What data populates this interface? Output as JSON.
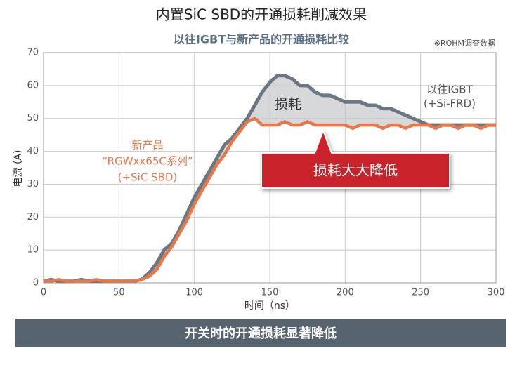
{
  "chart_data": {
    "type": "line",
    "title": "内置SiC SBD的开通损耗削减效果",
    "subtitle": "以往IGBT与新产品的开通损耗比较",
    "note": "※ROHM调查数据",
    "xlabel": "时间（ns）",
    "ylabel": "电流 (A)",
    "xlim": [
      0,
      300
    ],
    "xticks": [
      0,
      50,
      100,
      150,
      200,
      250,
      300
    ],
    "ylim": [
      0,
      70
    ],
    "yticks": [
      0,
      10,
      20,
      30,
      40,
      50,
      60,
      70
    ],
    "grid": true,
    "x": [
      0,
      5,
      10,
      15,
      20,
      25,
      30,
      35,
      40,
      45,
      50,
      55,
      60,
      65,
      70,
      75,
      80,
      85,
      90,
      95,
      100,
      105,
      110,
      115,
      120,
      125,
      130,
      135,
      140,
      145,
      150,
      155,
      160,
      165,
      170,
      175,
      180,
      185,
      190,
      195,
      200,
      205,
      210,
      215,
      220,
      225,
      230,
      235,
      240,
      245,
      250,
      255,
      260,
      265,
      270,
      275,
      280,
      285,
      290,
      295,
      300
    ],
    "series": [
      {
        "name": "以往IGBT",
        "name_lines": [
          "(+Si-FRD)"
        ],
        "color": "#6b7884",
        "values": [
          0.5,
          1,
          0.5,
          0.5,
          0.5,
          1,
          0.5,
          0.5,
          0.5,
          0.5,
          0.5,
          0.5,
          0.5,
          1,
          3,
          6,
          10,
          12,
          16,
          21,
          26,
          30,
          34,
          38,
          42,
          44,
          47,
          50,
          54,
          58,
          61,
          63,
          63,
          62,
          60,
          60,
          58,
          57,
          57,
          56,
          55,
          55,
          55,
          54,
          54,
          53,
          53,
          52,
          51,
          50,
          49,
          48,
          48,
          48,
          48,
          48,
          48,
          48,
          48,
          48,
          48
        ]
      },
      {
        "name": "新产品",
        "name_lines": [
          "“RGWxx65C系列”",
          "(+SiC SBD)"
        ],
        "color": "#e8774a",
        "values": [
          0.5,
          0.5,
          1,
          0.5,
          0.5,
          0.5,
          0.5,
          1,
          0.5,
          0.5,
          0.5,
          0.5,
          0.5,
          1,
          2,
          4,
          8,
          11,
          15,
          19,
          24,
          28,
          32,
          36,
          39,
          43,
          46,
          49,
          50,
          48,
          48,
          48,
          49,
          48,
          48,
          49,
          48,
          48,
          48,
          48,
          48,
          47,
          48,
          48,
          48,
          47,
          48,
          48,
          47,
          48,
          48,
          48,
          47,
          48,
          48,
          47,
          48,
          48,
          47,
          48,
          48
        ]
      }
    ],
    "area_color": "#d6d8da",
    "area_label": "损耗",
    "callout": "损耗大大降低",
    "banner": "开关时的开通损耗显著降低"
  }
}
